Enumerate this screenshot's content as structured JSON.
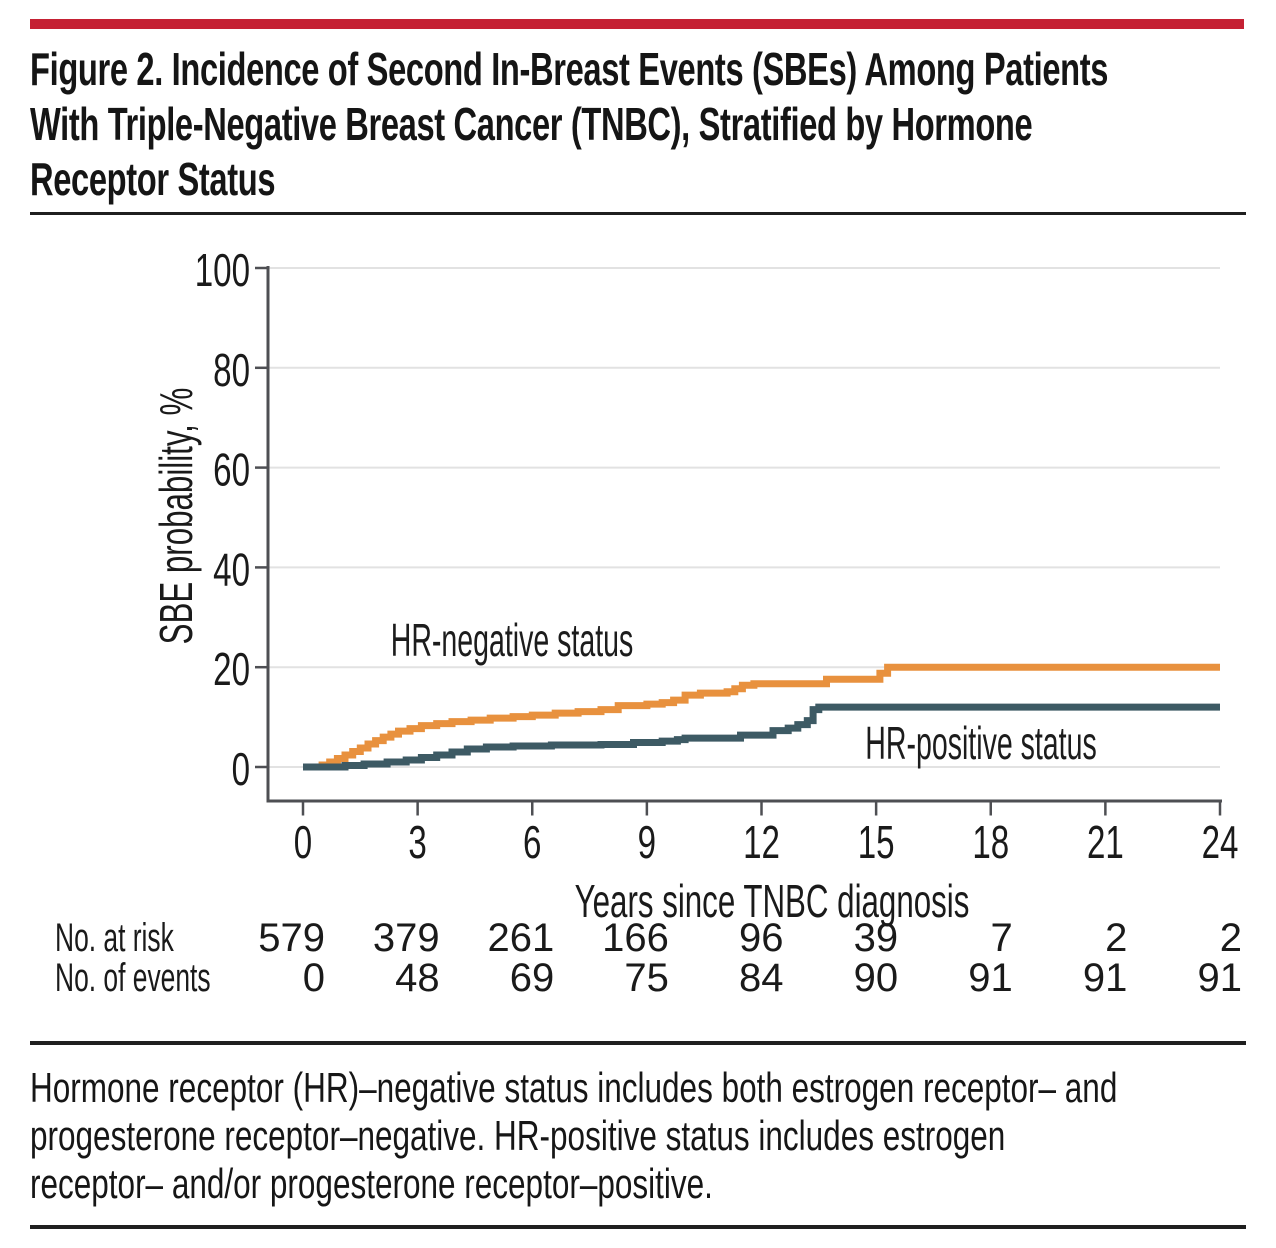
{
  "figure": {
    "accent_bar_color": "#C52134",
    "title_lines": [
      "Figure 2. Incidence of Second In-Breast Events (SBEs) Among Patients",
      "With Triple-Negative Breast Cancer (TNBC), Stratified by Hormone",
      "Receptor Status"
    ],
    "caption_lines": [
      "Hormone receptor (HR)–negative status includes both estrogen receptor– and",
      "progesterone receptor–negative. HR-positive status includes estrogen",
      "receptor– and/or progesterone receptor–positive."
    ]
  },
  "chart_data": {
    "type": "line",
    "step": "after",
    "title": "",
    "xlabel": "Years since TNBC diagnosis",
    "ylabel": "SBE probability, %",
    "xlim": [
      0,
      24
    ],
    "ylim": [
      0,
      100
    ],
    "xticks": [
      0,
      3,
      6,
      9,
      12,
      15,
      18,
      21,
      24
    ],
    "yticks": [
      0,
      20,
      40,
      60,
      80,
      100
    ],
    "grid": "horizontal",
    "legend": "inline-labels",
    "colors": {
      "grid": "#E2E2E2",
      "axis": "#4E4F53",
      "text": "#1A1A1A"
    },
    "series": [
      {
        "name": "HR-negative status",
        "color": "#E8913E",
        "points": [
          [
            0,
            0
          ],
          [
            0.5,
            0.4
          ],
          [
            0.7,
            1.0
          ],
          [
            0.9,
            1.7
          ],
          [
            1.1,
            2.4
          ],
          [
            1.3,
            3.1
          ],
          [
            1.5,
            3.8
          ],
          [
            1.7,
            4.6
          ],
          [
            1.9,
            5.3
          ],
          [
            2.1,
            6.0
          ],
          [
            2.3,
            6.6
          ],
          [
            2.5,
            7.2
          ],
          [
            2.8,
            7.7
          ],
          [
            3.1,
            8.3
          ],
          [
            3.5,
            8.7
          ],
          [
            3.9,
            9.1
          ],
          [
            4.4,
            9.4
          ],
          [
            4.9,
            9.8
          ],
          [
            5.5,
            10.1
          ],
          [
            6.0,
            10.4
          ],
          [
            6.6,
            10.8
          ],
          [
            7.2,
            11.1
          ],
          [
            7.8,
            11.5
          ],
          [
            8.25,
            12.3
          ],
          [
            9.0,
            12.6
          ],
          [
            9.4,
            12.9
          ],
          [
            9.7,
            13.4
          ],
          [
            10.0,
            14.4
          ],
          [
            10.4,
            14.8
          ],
          [
            11.1,
            15.1
          ],
          [
            11.3,
            15.7
          ],
          [
            11.5,
            16.4
          ],
          [
            11.8,
            16.7
          ],
          [
            13.7,
            17.6
          ],
          [
            15.1,
            18.8
          ],
          [
            15.3,
            20.0
          ],
          [
            24,
            20.0
          ]
        ]
      },
      {
        "name": "HR-positive status",
        "color": "#3D5A64",
        "points": [
          [
            0,
            0
          ],
          [
            1.1,
            0.3
          ],
          [
            1.6,
            0.6
          ],
          [
            2.2,
            1.0
          ],
          [
            2.7,
            1.4
          ],
          [
            3.1,
            1.9
          ],
          [
            3.5,
            2.4
          ],
          [
            3.9,
            3.0
          ],
          [
            4.3,
            3.6
          ],
          [
            4.8,
            4.0
          ],
          [
            5.5,
            4.2
          ],
          [
            6.5,
            4.4
          ],
          [
            7.8,
            4.5
          ],
          [
            8.65,
            4.9
          ],
          [
            9.4,
            5.2
          ],
          [
            9.8,
            5.5
          ],
          [
            10.0,
            5.8
          ],
          [
            11.45,
            6.4
          ],
          [
            12.3,
            7.3
          ],
          [
            12.7,
            7.8
          ],
          [
            12.95,
            8.5
          ],
          [
            13.2,
            9.3
          ],
          [
            13.35,
            11.5
          ],
          [
            13.5,
            12.0
          ],
          [
            24,
            12.0
          ]
        ]
      }
    ],
    "annotations": [
      {
        "text": "HR-negative status",
        "x": 5.5,
        "y": 25.5
      },
      {
        "text": "HR-positive status",
        "x": 17.7,
        "y": 4.8
      }
    ],
    "risk_table": {
      "rows": [
        {
          "label": "No. at risk",
          "values": [
            "579",
            "379",
            "261",
            "166",
            "96",
            "39",
            "7",
            "2",
            "2"
          ]
        },
        {
          "label": "No. of events",
          "values": [
            "0",
            "48",
            "69",
            "75",
            "84",
            "90",
            "91",
            "91",
            "91"
          ]
        }
      ]
    }
  }
}
